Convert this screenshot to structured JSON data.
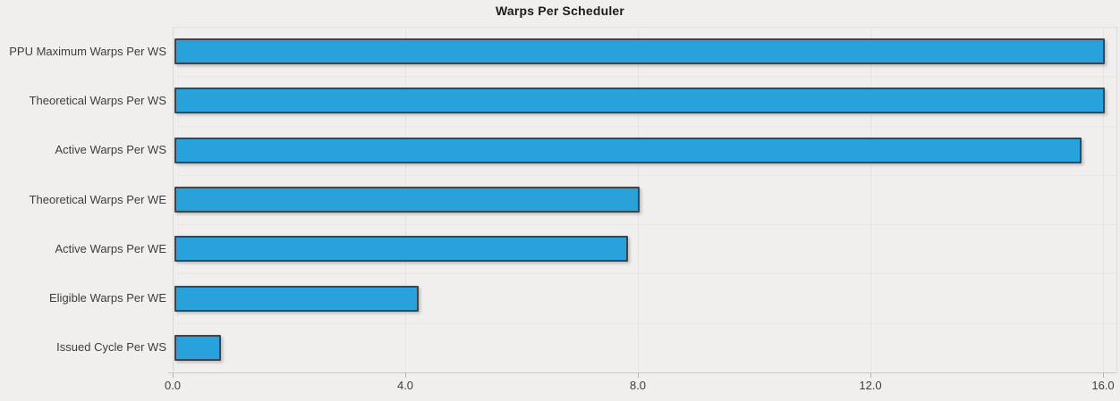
{
  "title": "Warps Per Scheduler",
  "chart_data": {
    "type": "bar",
    "orientation": "horizontal",
    "title": "Warps Per Scheduler",
    "categories": [
      "PPU Maximum Warps Per WS",
      "Theoretical Warps Per WS",
      "Active Warps Per WS",
      "Theoretical Warps Per WE",
      "Active Warps Per WE",
      "Eligible Warps Per WE",
      "Issued Cycle Per WS"
    ],
    "values": [
      16.0,
      16.0,
      15.6,
      8.0,
      7.8,
      4.2,
      0.8
    ],
    "xlabel": "",
    "ylabel": "",
    "xlim": [
      0,
      16.23
    ],
    "xtick_labels": [
      "0.0",
      "4.0",
      "8.0",
      "12.0",
      "16.0"
    ],
    "xtick_values": [
      0,
      4,
      8,
      12,
      16
    ],
    "grid": true,
    "legend": "none",
    "colors": {
      "bar_fill": "#29a2dc",
      "bar_border": "#3b4750",
      "background": "#f0efee",
      "gridline": "#e4e3e1",
      "axis_line": "#c7c6c4",
      "text": "#3d3d3d",
      "title_text": "#1b1b1b"
    }
  }
}
